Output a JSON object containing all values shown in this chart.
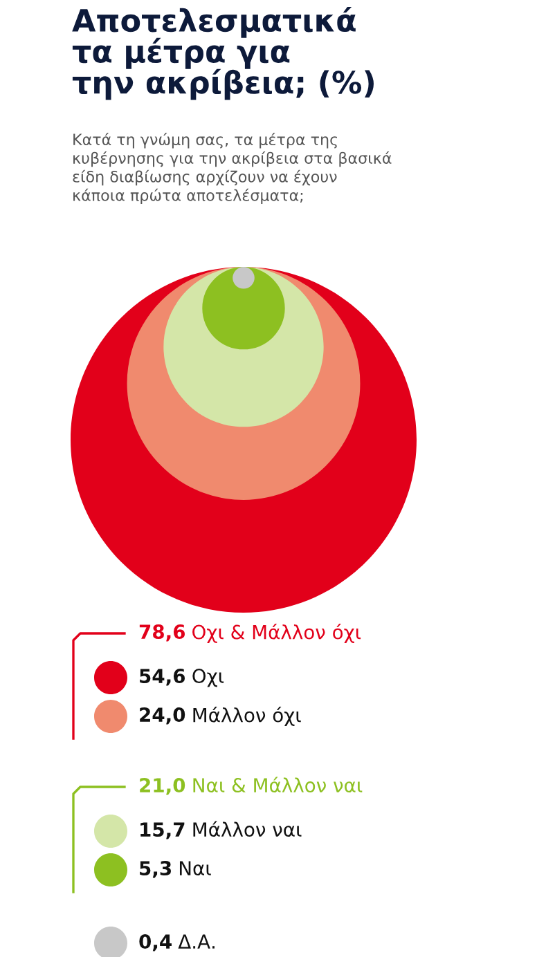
{
  "chart_data": {
    "type": "other",
    "title": "Αποτελεσματικά\nτα μέτρα για\nτην ακρίβεια; (%)",
    "subtitle": "Κατά τη γνώμη σας, τα μέτρα της\nκυβέρνησης για την ακρίβεια στα βασικά\nείδη διαβίωσης αρχίζουν να έχουν\nκάποια πρώτα αποτελέσματα;",
    "categories": [
      "Οχι",
      "Μάλλον όχι",
      "Μάλλον ναι",
      "Ναι",
      "Δ.Α."
    ],
    "values": [
      54.6,
      24.0,
      15.7,
      5.3,
      0.4
    ],
    "value_labels": [
      "54,6",
      "24,0",
      "15,7",
      "5,3",
      "0,4"
    ],
    "colors": [
      "#e2001a",
      "#f08a6e",
      "#d4e6a8",
      "#8dc021",
      "#c8c8c8"
    ],
    "totals": [
      "78,6",
      "21,0"
    ],
    "annotations": [
      "Οχι & Μάλλον όχι",
      "Ναι & Μάλλον ναι"
    ]
  }
}
